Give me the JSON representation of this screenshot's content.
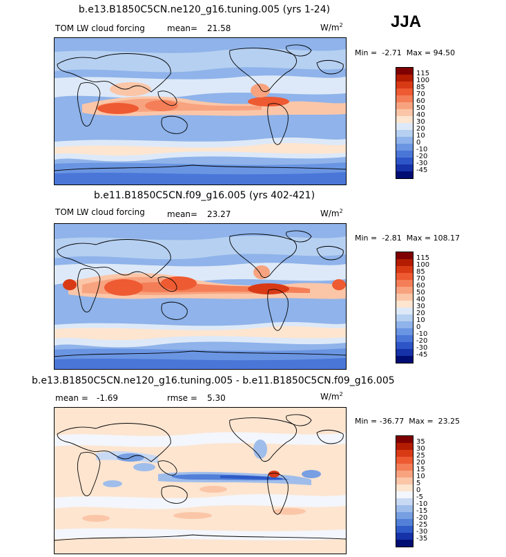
{
  "season": "JJA",
  "panels": [
    {
      "title": "b.e13.B1850C5CN.ne120_g16.tuning.005 (yrs 1-24)",
      "left_label": "TOM LW cloud forcing",
      "stat1_label": "mean=",
      "stat1_value": "21.58",
      "units": "W/m",
      "units_exp": "2",
      "min_label": "Min =",
      "min_value": "-2.71",
      "max_label": "Max =",
      "max_value": "94.50",
      "levels": [
        "115",
        "100",
        "85",
        "70",
        "60",
        "50",
        "40",
        "30",
        "20",
        "10",
        "0",
        "-10",
        "-20",
        "-30",
        "-45"
      ],
      "colors": [
        "#7f0000",
        "#b31c00",
        "#d93a16",
        "#ee5a32",
        "#f47e57",
        "#f8a37f",
        "#fbc6a8",
        "#fde5d0",
        "#dde9f8",
        "#b6d0f1",
        "#8fb3ea",
        "#6a95e2",
        "#4a76d8",
        "#2d55c8",
        "#1632a8",
        "#000d73"
      ]
    },
    {
      "title": "b.e11.B1850C5CN.f09_g16.005 (yrs 402-421)",
      "left_label": "TOM LW cloud forcing",
      "stat1_label": "mean=",
      "stat1_value": "23.27",
      "units": "W/m",
      "units_exp": "2",
      "min_label": "Min =",
      "min_value": "-2.81",
      "max_label": "Max =",
      "max_value": "108.17",
      "levels": [
        "115",
        "100",
        "85",
        "70",
        "60",
        "50",
        "40",
        "30",
        "20",
        "10",
        "0",
        "-10",
        "-20",
        "-30",
        "-45"
      ],
      "colors": [
        "#7f0000",
        "#b31c00",
        "#d93a16",
        "#ee5a32",
        "#f47e57",
        "#f8a37f",
        "#fbc6a8",
        "#fde5d0",
        "#dde9f8",
        "#b6d0f1",
        "#8fb3ea",
        "#6a95e2",
        "#4a76d8",
        "#2d55c8",
        "#1632a8",
        "#000d73"
      ]
    },
    {
      "title": "b.e13.B1850C5CN.ne120_g16.tuning.005 - b.e11.B1850C5CN.f09_g16.005",
      "stat1_label": "mean =",
      "stat1_value": "-1.69",
      "stat2_label": "rmse =",
      "stat2_value": "5.30",
      "units": "W/m",
      "units_exp": "2",
      "min_label": "Min =",
      "min_value": "-36.77",
      "max_label": "Max =",
      "max_value": "23.25",
      "levels": [
        "35",
        "30",
        "25",
        "20",
        "15",
        "10",
        "5",
        "0",
        "-5",
        "-10",
        "-15",
        "-20",
        "-25",
        "-30",
        "-35"
      ],
      "colors": [
        "#7f0000",
        "#b31c00",
        "#d93a16",
        "#ee5a32",
        "#f47e57",
        "#f8a37f",
        "#fbc6a8",
        "#fde5d0",
        "#f3f6fc",
        "#c8d9f4",
        "#9fbdeb",
        "#779fe2",
        "#5280d8",
        "#2f5bc8",
        "#1532a8",
        "#000d73"
      ]
    }
  ],
  "chart_data": [
    {
      "type": "heatmap",
      "title": "b.e13.B1850C5CN.ne120_g16.tuning.005 (yrs 1-24)",
      "variable": "TOM LW cloud forcing",
      "units": "W/m2",
      "mean": 21.58,
      "min": -2.71,
      "max": 94.5,
      "contour_levels": [
        -45,
        -30,
        -20,
        -10,
        0,
        10,
        20,
        30,
        40,
        50,
        60,
        70,
        85,
        100,
        115
      ],
      "grid": false
    },
    {
      "type": "heatmap",
      "title": "b.e11.B1850C5CN.f09_g16.005 (yrs 402-421)",
      "variable": "TOM LW cloud forcing",
      "units": "W/m2",
      "mean": 23.27,
      "min": -2.81,
      "max": 108.17,
      "contour_levels": [
        -45,
        -30,
        -20,
        -10,
        0,
        10,
        20,
        30,
        40,
        50,
        60,
        70,
        85,
        100,
        115
      ],
      "grid": false
    },
    {
      "type": "heatmap",
      "title": "b.e13.B1850C5CN.ne120_g16.tuning.005 - b.e11.B1850C5CN.f09_g16.005",
      "units": "W/m2",
      "mean": -1.69,
      "rmse": 5.3,
      "min": -36.77,
      "max": 23.25,
      "contour_levels": [
        -35,
        -30,
        -25,
        -20,
        -15,
        -10,
        -5,
        0,
        5,
        10,
        15,
        20,
        25,
        30,
        35
      ],
      "grid": false
    }
  ]
}
